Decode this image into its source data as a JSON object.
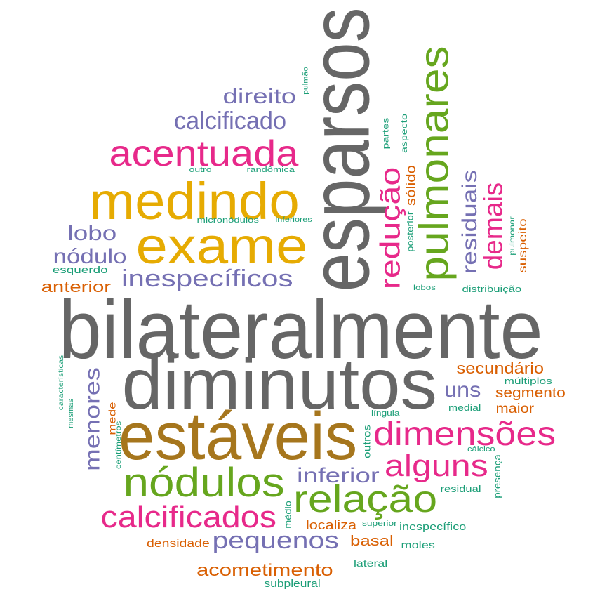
{
  "colors": {
    "gray": "#666666",
    "ochre": "#a6761d",
    "green": "#66a61e",
    "magenta": "#e7298a",
    "purple": "#7570b3",
    "gold": "#e6ab02",
    "orange": "#d95f02",
    "teal": "#1b9e77"
  },
  "words": [
    {
      "text": "bilateralmente",
      "color": "gray"
    },
    {
      "text": "diminutos",
      "color": "gray"
    },
    {
      "text": "esparsos",
      "color": "gray"
    },
    {
      "text": "estáveis",
      "color": "ochre"
    },
    {
      "text": "medindo",
      "color": "gold"
    },
    {
      "text": "exame",
      "color": "gold"
    },
    {
      "text": "pulmonares",
      "color": "green"
    },
    {
      "text": "nódulos",
      "color": "green"
    },
    {
      "text": "relação",
      "color": "green"
    },
    {
      "text": "acentuada",
      "color": "magenta"
    },
    {
      "text": "dimensões",
      "color": "magenta"
    },
    {
      "text": "alguns",
      "color": "magenta"
    },
    {
      "text": "calcificados",
      "color": "magenta"
    },
    {
      "text": "redução",
      "color": "magenta"
    },
    {
      "text": "demais",
      "color": "magenta"
    },
    {
      "text": "calcificado",
      "color": "purple"
    },
    {
      "text": "direito",
      "color": "purple"
    },
    {
      "text": "lobo",
      "color": "purple"
    },
    {
      "text": "nódulo",
      "color": "purple"
    },
    {
      "text": "inespecíficos",
      "color": "purple"
    },
    {
      "text": "residuais",
      "color": "purple"
    },
    {
      "text": "uns",
      "color": "purple"
    },
    {
      "text": "menores",
      "color": "purple"
    },
    {
      "text": "inferior",
      "color": "purple"
    },
    {
      "text": "pequenos",
      "color": "purple"
    },
    {
      "text": "anterior",
      "color": "orange"
    },
    {
      "text": "secundário",
      "color": "orange"
    },
    {
      "text": "segmento",
      "color": "orange"
    },
    {
      "text": "maior",
      "color": "orange"
    },
    {
      "text": "acometimento",
      "color": "orange"
    },
    {
      "text": "basal",
      "color": "orange"
    },
    {
      "text": "localiza",
      "color": "orange"
    },
    {
      "text": "densidade",
      "color": "orange"
    },
    {
      "text": "sólido",
      "color": "orange"
    },
    {
      "text": "suspeito",
      "color": "orange"
    },
    {
      "text": "mede",
      "color": "orange"
    },
    {
      "text": "esquerdo",
      "color": "teal"
    },
    {
      "text": "pulmão",
      "color": "teal"
    },
    {
      "text": "outro",
      "color": "teal"
    },
    {
      "text": "randômica",
      "color": "teal"
    },
    {
      "text": "micronódulos",
      "color": "teal"
    },
    {
      "text": "inferiores",
      "color": "teal"
    },
    {
      "text": "partes",
      "color": "teal"
    },
    {
      "text": "aspecto",
      "color": "teal"
    },
    {
      "text": "posterior",
      "color": "teal"
    },
    {
      "text": "lobos",
      "color": "teal"
    },
    {
      "text": "distribuição",
      "color": "teal"
    },
    {
      "text": "pulmonar",
      "color": "teal"
    },
    {
      "text": "múltiplos",
      "color": "teal"
    },
    {
      "text": "medial",
      "color": "teal"
    },
    {
      "text": "língula",
      "color": "teal"
    },
    {
      "text": "outros",
      "color": "teal"
    },
    {
      "text": "cálcico",
      "color": "teal"
    },
    {
      "text": "presença",
      "color": "teal"
    },
    {
      "text": "residual",
      "color": "teal"
    },
    {
      "text": "inespecífico",
      "color": "teal"
    },
    {
      "text": "superior",
      "color": "teal"
    },
    {
      "text": "moles",
      "color": "teal"
    },
    {
      "text": "médio",
      "color": "teal"
    },
    {
      "text": "lateral",
      "color": "teal"
    },
    {
      "text": "subpleural",
      "color": "teal"
    },
    {
      "text": "características",
      "color": "teal"
    },
    {
      "text": "mesmas",
      "color": "teal"
    },
    {
      "text": "centímetros",
      "color": "teal"
    }
  ]
}
